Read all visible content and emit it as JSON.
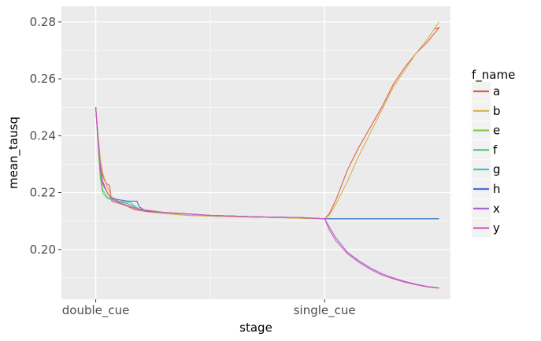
{
  "chart_data": {
    "type": "line",
    "xlabel": "stage",
    "ylabel": "mean_tausq",
    "x_categories": [
      "double_cue",
      "single_cue"
    ],
    "x_range": [
      -0.15,
      1.55
    ],
    "ylim": [
      0.1825,
      0.2855
    ],
    "y_ticks": [
      0.2,
      0.22,
      0.24,
      0.26,
      0.28
    ],
    "y_tick_labels": [
      "0.20",
      "0.22",
      "0.24",
      "0.26",
      "0.28"
    ],
    "grid": true,
    "legend": {
      "title": "f_name",
      "position": "right"
    },
    "series": [
      {
        "name": "a",
        "color": "#e2594f",
        "points": [
          [
            0.0,
            0.25
          ],
          [
            0.01,
            0.24
          ],
          [
            0.02,
            0.23
          ],
          [
            0.03,
            0.226
          ],
          [
            0.04,
            0.224
          ],
          [
            0.05,
            0.223
          ],
          [
            0.06,
            0.2225
          ],
          [
            0.07,
            0.217
          ],
          [
            0.09,
            0.2165
          ],
          [
            0.11,
            0.216
          ],
          [
            0.13,
            0.2155
          ],
          [
            0.17,
            0.214
          ],
          [
            0.25,
            0.213
          ],
          [
            0.4,
            0.212
          ],
          [
            0.6,
            0.2115
          ],
          [
            0.8,
            0.2112
          ],
          [
            1.0,
            0.2108
          ],
          [
            1.02,
            0.2125
          ],
          [
            1.05,
            0.2175
          ],
          [
            1.1,
            0.228
          ],
          [
            1.15,
            0.236
          ],
          [
            1.2,
            0.243
          ],
          [
            1.25,
            0.25
          ],
          [
            1.3,
            0.258
          ],
          [
            1.35,
            0.264
          ],
          [
            1.4,
            0.269
          ],
          [
            1.45,
            0.273
          ],
          [
            1.5,
            0.278
          ],
          [
            1.48,
            0.2775
          ]
        ]
      },
      {
        "name": "b",
        "color": "#d4b543",
        "points": [
          [
            0.0,
            0.25
          ],
          [
            0.01,
            0.24
          ],
          [
            0.02,
            0.232
          ],
          [
            0.03,
            0.227
          ],
          [
            0.05,
            0.222
          ],
          [
            0.07,
            0.2185
          ],
          [
            0.09,
            0.2175
          ],
          [
            0.12,
            0.216
          ],
          [
            0.17,
            0.2145
          ],
          [
            0.25,
            0.213
          ],
          [
            0.4,
            0.212
          ],
          [
            0.6,
            0.2115
          ],
          [
            0.8,
            0.2112
          ],
          [
            1.0,
            0.2108
          ],
          [
            1.02,
            0.212
          ],
          [
            1.05,
            0.216
          ],
          [
            1.1,
            0.224
          ],
          [
            1.15,
            0.233
          ],
          [
            1.2,
            0.241
          ],
          [
            1.25,
            0.249
          ],
          [
            1.3,
            0.257
          ],
          [
            1.35,
            0.263
          ],
          [
            1.4,
            0.269
          ],
          [
            1.45,
            0.274
          ],
          [
            1.5,
            0.28
          ]
        ]
      },
      {
        "name": "e",
        "color": "#8ac547",
        "points": [
          [
            0.0,
            0.25
          ],
          [
            0.01,
            0.238
          ],
          [
            0.02,
            0.226
          ],
          [
            0.03,
            0.221
          ],
          [
            0.05,
            0.2185
          ],
          [
            0.07,
            0.2175
          ],
          [
            0.1,
            0.217
          ],
          [
            0.14,
            0.216
          ],
          [
            0.2,
            0.214
          ],
          [
            0.3,
            0.213
          ],
          [
            0.5,
            0.212
          ],
          [
            0.7,
            0.2115
          ],
          [
            0.9,
            0.2112
          ],
          [
            1.0,
            0.2108
          ],
          [
            1.5,
            0.2108
          ]
        ]
      },
      {
        "name": "f",
        "color": "#4fc879",
        "points": [
          [
            0.0,
            0.25
          ],
          [
            0.01,
            0.237
          ],
          [
            0.02,
            0.225
          ],
          [
            0.03,
            0.22
          ],
          [
            0.05,
            0.218
          ],
          [
            0.07,
            0.2175
          ],
          [
            0.1,
            0.217
          ],
          [
            0.14,
            0.216
          ],
          [
            0.2,
            0.214
          ],
          [
            0.3,
            0.213
          ],
          [
            0.5,
            0.212
          ],
          [
            0.7,
            0.2115
          ],
          [
            0.9,
            0.2112
          ],
          [
            1.0,
            0.2108
          ],
          [
            1.5,
            0.2108
          ]
        ]
      },
      {
        "name": "g",
        "color": "#41c2c8",
        "points": [
          [
            0.0,
            0.25
          ],
          [
            0.01,
            0.239
          ],
          [
            0.02,
            0.228
          ],
          [
            0.03,
            0.223
          ],
          [
            0.05,
            0.22
          ],
          [
            0.07,
            0.2175
          ],
          [
            0.1,
            0.217
          ],
          [
            0.15,
            0.2165
          ],
          [
            0.19,
            0.214
          ],
          [
            0.3,
            0.213
          ],
          [
            0.5,
            0.212
          ],
          [
            0.7,
            0.2115
          ],
          [
            0.9,
            0.2112
          ],
          [
            1.0,
            0.2108
          ],
          [
            1.5,
            0.2108
          ]
        ]
      },
      {
        "name": "h",
        "color": "#4a72d4",
        "points": [
          [
            0.0,
            0.25
          ],
          [
            0.01,
            0.239
          ],
          [
            0.02,
            0.229
          ],
          [
            0.03,
            0.224
          ],
          [
            0.05,
            0.22
          ],
          [
            0.07,
            0.218
          ],
          [
            0.1,
            0.2175
          ],
          [
            0.14,
            0.217
          ],
          [
            0.18,
            0.217
          ],
          [
            0.19,
            0.215
          ],
          [
            0.22,
            0.2135
          ],
          [
            0.3,
            0.213
          ],
          [
            0.5,
            0.212
          ],
          [
            0.7,
            0.2115
          ],
          [
            0.9,
            0.2112
          ],
          [
            1.0,
            0.2108
          ],
          [
            1.5,
            0.2108
          ]
        ]
      },
      {
        "name": "x",
        "color": "#a35fd4",
        "points": [
          [
            0.0,
            0.25
          ],
          [
            0.01,
            0.238
          ],
          [
            0.02,
            0.228
          ],
          [
            0.03,
            0.223
          ],
          [
            0.05,
            0.22
          ],
          [
            0.07,
            0.218
          ],
          [
            0.1,
            0.2165
          ],
          [
            0.15,
            0.215
          ],
          [
            0.2,
            0.214
          ],
          [
            0.3,
            0.213
          ],
          [
            0.5,
            0.212
          ],
          [
            0.7,
            0.2115
          ],
          [
            0.9,
            0.2112
          ],
          [
            1.0,
            0.2108
          ],
          [
            1.02,
            0.208
          ],
          [
            1.05,
            0.204
          ],
          [
            1.1,
            0.199
          ],
          [
            1.15,
            0.196
          ],
          [
            1.2,
            0.1935
          ],
          [
            1.25,
            0.1915
          ],
          [
            1.3,
            0.19
          ],
          [
            1.35,
            0.1888
          ],
          [
            1.4,
            0.1878
          ],
          [
            1.45,
            0.187
          ],
          [
            1.5,
            0.1865
          ]
        ]
      },
      {
        "name": "y",
        "color": "#d65ab8",
        "points": [
          [
            0.0,
            0.25
          ],
          [
            0.01,
            0.238
          ],
          [
            0.02,
            0.229
          ],
          [
            0.03,
            0.224
          ],
          [
            0.05,
            0.22
          ],
          [
            0.07,
            0.218
          ],
          [
            0.1,
            0.2165
          ],
          [
            0.15,
            0.215
          ],
          [
            0.2,
            0.214
          ],
          [
            0.3,
            0.213
          ],
          [
            0.5,
            0.212
          ],
          [
            0.7,
            0.2115
          ],
          [
            0.9,
            0.2112
          ],
          [
            1.0,
            0.2108
          ],
          [
            1.02,
            0.207
          ],
          [
            1.05,
            0.203
          ],
          [
            1.1,
            0.1985
          ],
          [
            1.15,
            0.1955
          ],
          [
            1.2,
            0.193
          ],
          [
            1.25,
            0.191
          ],
          [
            1.3,
            0.1897
          ],
          [
            1.35,
            0.1885
          ],
          [
            1.4,
            0.1876
          ],
          [
            1.45,
            0.1868
          ],
          [
            1.5,
            0.1864
          ]
        ]
      }
    ]
  }
}
